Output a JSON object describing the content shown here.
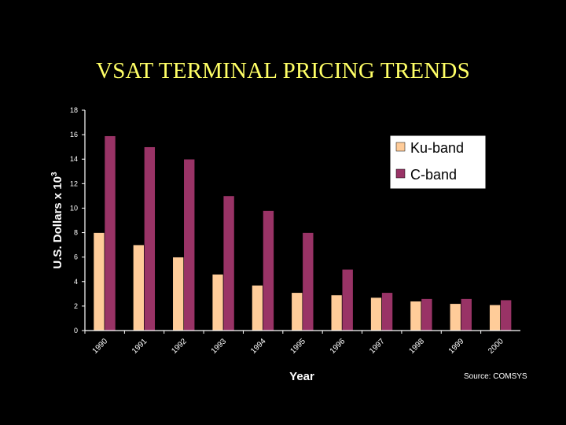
{
  "slide": {
    "title": "VSAT TERMINAL PRICING TRENDS",
    "source": "Source: COMSYS"
  },
  "colors": {
    "background": "#000000",
    "title": "#ffff66",
    "ku_band": "#ffcc99",
    "c_band": "#993366",
    "axis": "#ffffff",
    "plot_area": "#000000",
    "legend_box": "#ffffff"
  },
  "chart_data": {
    "type": "bar",
    "categories": [
      "1990",
      "1991",
      "1992",
      "1993",
      "1994",
      "1995",
      "1996",
      "1997",
      "1998",
      "1999",
      "2000"
    ],
    "series": [
      {
        "name": "Ku-band",
        "color": "#ffcc99",
        "values": [
          8,
          7,
          6,
          4.6,
          3.7,
          3.1,
          2.9,
          2.7,
          2.4,
          2.2,
          2.1
        ]
      },
      {
        "name": "C-band",
        "color": "#993366",
        "values": [
          15.9,
          15,
          14,
          11,
          9.8,
          8,
          5,
          3.1,
          2.6,
          2.6,
          2.5
        ]
      }
    ],
    "ylabel_main": "U.S. Dollars x 10",
    "ylabel_exp": "3",
    "xlabel": "Year",
    "ylim": [
      0,
      18
    ],
    "yticks": [
      "0",
      "2",
      "4",
      "6",
      "8",
      "10",
      "12",
      "14",
      "16",
      "18"
    ],
    "legend_position": "top-right"
  }
}
